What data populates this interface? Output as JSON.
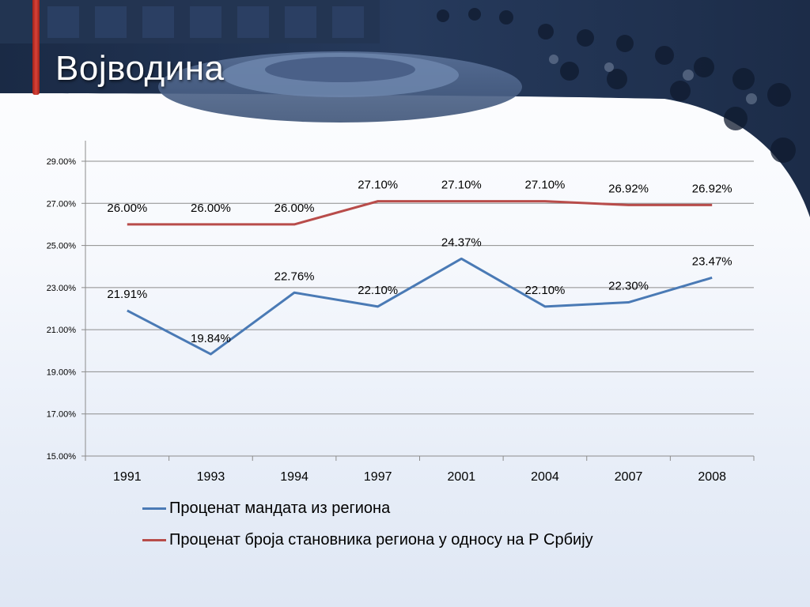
{
  "slide": {
    "title": "Војводина"
  },
  "colors": {
    "series1": "#4a7ab5",
    "series2": "#b84c4a",
    "accent_bar": "#c8372e"
  },
  "chart_data": {
    "type": "line",
    "categories": [
      "1991",
      "1993",
      "1994",
      "1997",
      "2001",
      "2004",
      "2007",
      "2008"
    ],
    "ylim": [
      15.0,
      29.0
    ],
    "yticks": [
      "15.00%",
      "17.00%",
      "19.00%",
      "21.00%",
      "23.00%",
      "25.00%",
      "27.00%",
      "29.00%"
    ],
    "ytick_values": [
      15,
      17,
      19,
      21,
      23,
      25,
      27,
      29
    ],
    "grid": true,
    "legend_position": "bottom",
    "series": [
      {
        "name": "Проценат мандата из региона",
        "values": [
          21.91,
          19.84,
          22.76,
          22.1,
          24.37,
          22.1,
          22.3,
          23.47
        ],
        "labels": [
          "21.91%",
          "19.84%",
          "22.76%",
          "22.10%",
          "24.37%",
          "22.10%",
          "22.30%",
          "23.47%"
        ]
      },
      {
        "name": "Проценат броја становника региона у односу на Р Србију",
        "values": [
          26.0,
          26.0,
          26.0,
          27.1,
          27.1,
          27.1,
          26.92,
          26.92
        ],
        "labels": [
          "26.00%",
          "26.00%",
          "26.00%",
          "27.10%",
          "27.10%",
          "27.10%",
          "26.92%",
          "26.92%"
        ]
      }
    ]
  }
}
